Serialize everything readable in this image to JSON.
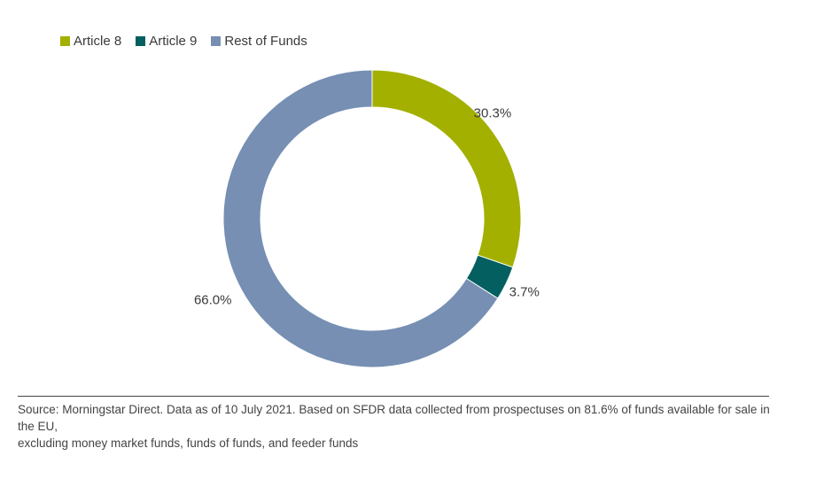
{
  "chart_data": {
    "type": "pie",
    "variant": "donut",
    "slices": [
      {
        "name": "Article 8",
        "value": 30.3,
        "label": "30.3%",
        "color": "#a3b000"
      },
      {
        "name": "Article 9",
        "value": 3.7,
        "label": "3.7%",
        "color": "#045f60"
      },
      {
        "name": "Rest of Funds",
        "value": 66.0,
        "label": "66.0%",
        "color": "#768fb3"
      }
    ],
    "legend_position": "top-left",
    "start": "top",
    "direction": "clockwise"
  },
  "footer": {
    "source_line1": "Source: Morningstar Direct. Data as of 10 July 2021. Based on SFDR data collected from prospectuses on 81.6% of funds available for sale in the EU,",
    "source_line2": "excluding money market funds, funds of funds, and feeder funds"
  }
}
